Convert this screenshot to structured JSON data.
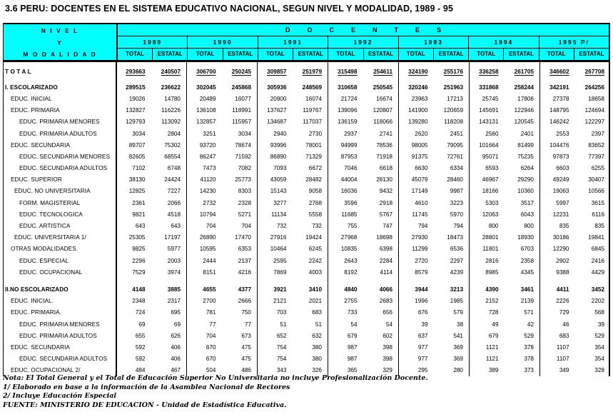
{
  "title": "3.6  PERU: DOCENTES EN EL SISTEMA EDUCATIVO NACIONAL, SEGUN NIVEL Y MODALIDAD, 1989 - 95",
  "colors": {
    "header_bg": "#00FFFF",
    "border": "#000000",
    "text": "#000000"
  },
  "header": {
    "nivel_line1": "N I V E L",
    "nivel_line2": "Y",
    "nivel_line3": "M O D A L I D A D",
    "docentes": "DOCENTES",
    "years": [
      "1989",
      "1990",
      "1991",
      "1992",
      "1993",
      "1994",
      "1995 P/"
    ],
    "subcols": [
      "TOTAL",
      "ESTATAL"
    ]
  },
  "chart_data": {
    "type": "table",
    "title": "3.6 PERU: Docentes en el Sistema Educativo Nacional, segun Nivel y Modalidad, 1989-95",
    "columns": [
      "1989 TOTAL",
      "1989 ESTATAL",
      "1990 TOTAL",
      "1990 ESTATAL",
      "1991 TOTAL",
      "1991 ESTATAL",
      "1992 TOTAL",
      "1992 ESTATAL",
      "1993 TOTAL",
      "1993 ESTATAL",
      "1994 TOTAL",
      "1994 ESTATAL",
      "1995 TOTAL",
      "1995 ESTATAL"
    ]
  },
  "rows": [
    {
      "label": "T O T A L",
      "indent": 0,
      "bold": true,
      "underline": true,
      "gap": 0,
      "values": [
        "293663",
        "240507",
        "306700",
        "250245",
        "309857",
        "251979",
        "315498",
        "254611",
        "324190",
        "255176",
        "336258",
        "261705",
        "346602",
        "267708"
      ]
    },
    {
      "label": "I. ESCOLARIZADO",
      "indent": 0,
      "bold": true,
      "underline": false,
      "gap": 6,
      "values": [
        "289515",
        "236622",
        "302045",
        "245868",
        "305936",
        "248569",
        "310658",
        "250545",
        "320246",
        "251963",
        "331868",
        "258244",
        "342191",
        "264256"
      ]
    },
    {
      "label": "EDUC. INICIAL",
      "indent": 1,
      "bold": false,
      "underline": false,
      "gap": 0,
      "values": [
        "19026",
        "14780",
        "20489",
        "16077",
        "20900",
        "16074",
        "21724",
        "16674",
        "23963",
        "17213",
        "25745",
        "17806",
        "27378",
        "18658"
      ]
    },
    {
      "label": "EDUC. PRIMARIA",
      "indent": 1,
      "bold": false,
      "underline": false,
      "gap": 0,
      "values": [
        "132827",
        "116226",
        "136108",
        "118991",
        "137627",
        "119767",
        "139096",
        "120807",
        "141900",
        "120659",
        "145691",
        "122946",
        "148795",
        "124694"
      ]
    },
    {
      "label": "EDUC. PRIMARIA MENORES",
      "indent": 2,
      "bold": false,
      "underline": false,
      "gap": 0,
      "values": [
        "129793",
        "113092",
        "132857",
        "115957",
        "134687",
        "117037",
        "136159",
        "118066",
        "139280",
        "118208",
        "143131",
        "120545",
        "146242",
        "122297"
      ]
    },
    {
      "label": "EDUC. PRIMARIA ADULTOS",
      "indent": 2,
      "bold": false,
      "underline": false,
      "gap": 0,
      "values": [
        "3034",
        "2804",
        "3251",
        "3034",
        "2940",
        "2730",
        "2937",
        "2741",
        "2620",
        "2451",
        "2560",
        "2401",
        "2553",
        "2397"
      ]
    },
    {
      "label": "EDUC. SECUNDARIA",
      "indent": 1,
      "bold": false,
      "underline": false,
      "gap": 0,
      "values": [
        "89707",
        "75302",
        "93720",
        "78674",
        "93996",
        "78001",
        "94999",
        "78536",
        "98005",
        "79095",
        "101664",
        "81499",
        "104476",
        "83652"
      ]
    },
    {
      "label": "EDUC. SECUNDARIA MENORES",
      "indent": 2,
      "bold": false,
      "underline": false,
      "gap": 0,
      "values": [
        "82605",
        "68554",
        "86247",
        "71592",
        "86890",
        "71329",
        "87953",
        "71918",
        "91375",
        "72761",
        "95071",
        "75235",
        "97873",
        "77397"
      ]
    },
    {
      "label": "EDUC. SECUNDARIA ADULTOS",
      "indent": 2,
      "bold": false,
      "underline": false,
      "gap": 0,
      "values": [
        "7102",
        "6748",
        "7473",
        "7082",
        "7093",
        "6672",
        "7046",
        "6618",
        "6630",
        "6334",
        "6593",
        "6264",
        "6603",
        "6255"
      ]
    },
    {
      "label": "EDUC. SUPERIOR",
      "indent": 1,
      "bold": false,
      "underline": false,
      "gap": 0,
      "values": [
        "38130",
        "24424",
        "41120",
        "25773",
        "43059",
        "28482",
        "44004",
        "28130",
        "45079",
        "28460",
        "46967",
        "29290",
        "49249",
        "30407"
      ]
    },
    {
      "label": "EDUC. NO UNIVERSITARIA",
      "indent": 1.5,
      "bold": false,
      "underline": false,
      "gap": 0,
      "values": [
        "12825",
        "7227",
        "14230",
        "8303",
        "15143",
        "9058",
        "16036",
        "9432",
        "17149",
        "9987",
        "18166",
        "10360",
        "19063",
        "10566"
      ]
    },
    {
      "label": "FORM. MAGISTERIAL",
      "indent": 2,
      "bold": false,
      "underline": false,
      "gap": 0,
      "values": [
        "2361",
        "2066",
        "2732",
        "2328",
        "3277",
        "2768",
        "3596",
        "2918",
        "4610",
        "3223",
        "5303",
        "3517",
        "5997",
        "3615"
      ]
    },
    {
      "label": "EDUC. TECNOLOGICA",
      "indent": 2,
      "bold": false,
      "underline": false,
      "gap": 0,
      "values": [
        "9821",
        "4518",
        "10794",
        "5271",
        "11134",
        "5558",
        "11685",
        "5767",
        "11745",
        "5970",
        "12063",
        "6043",
        "12231",
        "6116"
      ]
    },
    {
      "label": "EDUC. ARTISTICA",
      "indent": 2,
      "bold": false,
      "underline": false,
      "gap": 0,
      "values": [
        "643",
        "643",
        "704",
        "704",
        "732",
        "732",
        "755",
        "747",
        "794",
        "794",
        "800",
        "800",
        "835",
        "835"
      ]
    },
    {
      "label": "EDUC. UNIVERSITARIA 1/",
      "indent": 1.5,
      "bold": false,
      "underline": false,
      "gap": 0,
      "values": [
        "25305",
        "17197",
        "26890",
        "17470",
        "27916",
        "19424",
        "27968",
        "18698",
        "27930",
        "18473",
        "28801",
        "18930",
        "30186",
        "19841"
      ]
    },
    {
      "label": "OTRAS MODALIDADES",
      "indent": 1,
      "bold": false,
      "underline": false,
      "gap": 0,
      "values": [
        "9825",
        "5977",
        "10595",
        "6353",
        "10464",
        "6245",
        "10835",
        "6398",
        "11299",
        "6536",
        "11801",
        "6703",
        "12290",
        "6845"
      ]
    },
    {
      "label": "EDUC. ESPECIAL",
      "indent": 2,
      "bold": false,
      "underline": false,
      "gap": 0,
      "values": [
        "2296",
        "2003",
        "2444",
        "2137",
        "2595",
        "2242",
        "2643",
        "2284",
        "2720",
        "2297",
        "2816",
        "2358",
        "2902",
        "2416"
      ]
    },
    {
      "label": "EDUC. OCUPACIONAL",
      "indent": 2,
      "bold": false,
      "underline": false,
      "gap": 0,
      "values": [
        "7529",
        "3974",
        "8151",
        "4216",
        "7869",
        "4003",
        "8192",
        "4114",
        "8579",
        "4239",
        "8985",
        "4345",
        "9388",
        "4429"
      ]
    },
    {
      "label": "II.NO ESCOLARIZADO",
      "indent": 0,
      "bold": true,
      "underline": false,
      "gap": 8,
      "values": [
        "4148",
        "3885",
        "4655",
        "4377",
        "3921",
        "3410",
        "4840",
        "4066",
        "3944",
        "3213",
        "4390",
        "3461",
        "4411",
        "3452"
      ]
    },
    {
      "label": "EDUC. INICIAL.",
      "indent": 1,
      "bold": false,
      "underline": false,
      "gap": 0,
      "values": [
        "2348",
        "2317",
        "2700",
        "2666",
        "2121",
        "2021",
        "2755",
        "2683",
        "1996",
        "1985",
        "2152",
        "2139",
        "2226",
        "2202"
      ]
    },
    {
      "label": "EDUC. PRIMARIA.",
      "indent": 1,
      "bold": false,
      "underline": false,
      "gap": 0,
      "values": [
        "724",
        "695",
        "781",
        "750",
        "703",
        "683",
        "733",
        "656",
        "676",
        "579",
        "728",
        "571",
        "729",
        "568"
      ]
    },
    {
      "label": "EDUC. PRIMARIA MENORES",
      "indent": 2,
      "bold": false,
      "underline": false,
      "gap": 0,
      "values": [
        "69",
        "69",
        "77",
        "77",
        "51",
        "51",
        "54",
        "54",
        "39",
        "38",
        "49",
        "42",
        "46",
        "39"
      ]
    },
    {
      "label": "EDUC. PRIMARIA ADULTOS",
      "indent": 2,
      "bold": false,
      "underline": false,
      "gap": 0,
      "values": [
        "655",
        "626",
        "704",
        "673",
        "652",
        "632",
        "679",
        "602",
        "637",
        "541",
        "679",
        "529",
        "683",
        "529"
      ]
    },
    {
      "label": "EDUC. SECUNDARIA",
      "indent": 1,
      "bold": false,
      "underline": false,
      "gap": 0,
      "values": [
        "592",
        "406",
        "670",
        "475",
        "754",
        "380",
        "987",
        "398",
        "977",
        "369",
        "1121",
        "378",
        "1107",
        "354"
      ]
    },
    {
      "label": "EDUC. SECUNDARIA ADULTOS",
      "indent": 2,
      "bold": false,
      "underline": false,
      "gap": 0,
      "values": [
        "592",
        "406",
        "670",
        "475",
        "754",
        "380",
        "987",
        "398",
        "977",
        "369",
        "1121",
        "378",
        "1107",
        "354"
      ]
    },
    {
      "label": "EDUC. OCUPACIONAL 2/",
      "indent": 1,
      "bold": false,
      "underline": false,
      "gap": 0,
      "values": [
        "484",
        "467",
        "504",
        "486",
        "343",
        "326",
        "365",
        "329",
        "295",
        "280",
        "389",
        "373",
        "349",
        "328"
      ]
    }
  ],
  "notes": [
    "Nota: El Total General y el Total de Educación Superior No Universitaria no incluye Profesionalización Docente.",
    "1/  Elaborado en base a la información de la Asamblea Nacional de Rectores",
    "2/  Incluye Educación Especial",
    "FUENTE: MINISTERIO DE EDUCACION -  Unidad de Estadística Educativa."
  ]
}
